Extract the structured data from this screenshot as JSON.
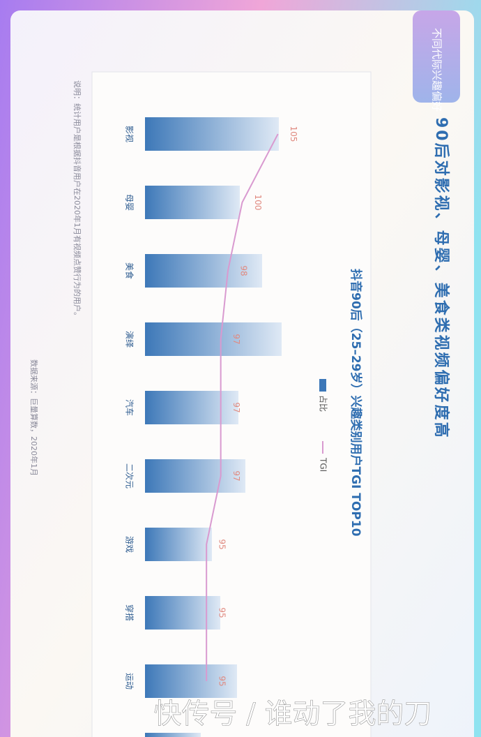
{
  "tab": "不同代际兴趣偏好",
  "headline": "90后对影视、母婴、美食类视频偏好度高",
  "chart_data": {
    "type": "bar",
    "title": "抖音90后（25–29岁）兴趣类别用户TGI TOP10",
    "categories": [
      "影视",
      "母婴",
      "美食",
      "演绎",
      "汽车",
      "二次元",
      "游戏",
      "穿搭",
      "运动",
      null
    ],
    "series": [
      {
        "name": "占比",
        "color": "#3d78b8",
        "values": [
          9.6,
          6.8,
          8.4,
          9.8,
          6.7,
          7.2,
          4.8,
          5.4,
          6.6,
          4.0
        ]
      },
      {
        "name": "TGI",
        "color": "#d99ad0",
        "type": "line",
        "axis": "y2",
        "values": [
          105,
          100,
          98,
          97,
          97,
          97,
          95,
          95,
          95,
          null
        ]
      }
    ],
    "ylim": [
      0,
      10
    ],
    "y2lim": [
      86.4,
      118
    ]
  },
  "note": "说明：统计用户是根据抖音用户在2020年1月有视频点赞行为的用户。",
  "source": "数据来源：巨量算数，2020年1月",
  "watermark": "快传号 / 谁动了我的刀"
}
